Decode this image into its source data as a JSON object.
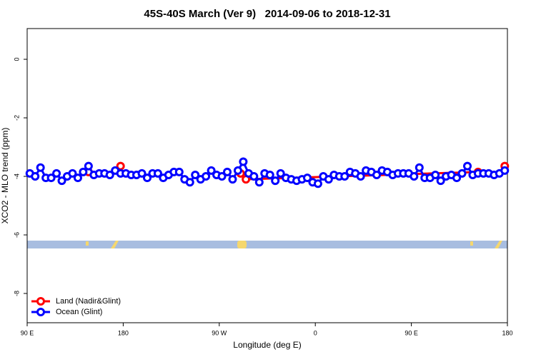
{
  "chart_data": {
    "type": "line",
    "title": "45S-40S March (Ver 9)   2014-09-06 to 2018-12-31",
    "xlabel": "Longitude (deg E)",
    "ylabel": "XCO2 - MLO trend (ppm)",
    "xlim": [
      90,
      540
    ],
    "ylim": [
      -9,
      1.05
    ],
    "xticks": [
      {
        "value": 90,
        "label": "90 E"
      },
      180,
      {
        "value": 270,
        "label": "90 W"
      },
      {
        "value": 360,
        "label": "0"
      },
      {
        "value": 450,
        "label": "90 E"
      },
      {
        "value": 540,
        "label": "180"
      }
    ],
    "yticks": [
      0,
      -2,
      -4,
      -6,
      -8
    ],
    "legend": "bottomleft",
    "series": [
      {
        "name": "Land (Nadir&Glint)",
        "color": "#ff0000",
        "x": [
          147.5,
          152.5,
          177.5,
          182.5,
          290,
          295,
          512.5,
          517.5,
          537.5
        ],
        "values": [
          -3.85,
          null,
          -3.65,
          null,
          -3.9,
          -4.1,
          -3.85,
          null,
          -3.65
        ]
      },
      {
        "name": "Ocean (Glint)",
        "color": "#0000ff",
        "x": [
          92.5,
          97.5,
          102.5,
          107.5,
          112.5,
          117.5,
          122.5,
          127.5,
          132.5,
          137.5,
          142.5,
          147.5,
          152.5,
          157.5,
          162.5,
          167.5,
          172.5,
          177.5,
          182.5,
          187.5,
          192.5,
          197.5,
          202.5,
          207.5,
          212.5,
          217.5,
          222.5,
          227.5,
          232.5,
          237.5,
          242.5,
          247.5,
          252.5,
          257.5,
          262.5,
          267.5,
          272.5,
          277.5,
          282.5,
          287.5,
          292.5,
          297.5,
          302.5,
          307.5,
          312.5,
          317.5,
          322.5,
          327.5,
          332.5,
          337.5,
          342.5,
          347.5,
          352.5,
          357.5,
          362.5,
          367.5,
          372.5,
          377.5,
          382.5,
          387.5,
          392.5,
          397.5,
          402.5,
          407.5,
          412.5,
          417.5,
          422.5,
          427.5,
          432.5,
          437.5,
          442.5,
          447.5,
          452.5,
          457.5,
          462.5,
          467.5,
          472.5,
          477.5,
          482.5,
          487.5,
          492.5,
          497.5,
          502.5,
          507.5,
          512.5,
          517.5,
          522.5,
          527.5,
          532.5,
          537.5
        ],
        "values": [
          -3.9,
          -4.0,
          -3.7,
          -4.05,
          -4.05,
          -3.9,
          -4.15,
          -4.0,
          -3.9,
          -4.05,
          -3.85,
          -3.65,
          -3.95,
          -3.9,
          -3.9,
          -3.95,
          -3.8,
          -3.9,
          -3.9,
          -3.95,
          -3.95,
          -3.9,
          -4.05,
          -3.9,
          -3.9,
          -4.05,
          -3.95,
          -3.85,
          -3.85,
          -4.1,
          -4.2,
          -3.95,
          -4.1,
          -4.0,
          -3.8,
          -3.95,
          -4.0,
          -3.85,
          -4.1,
          -3.8,
          -3.5,
          -3.9,
          -4.0,
          -4.2,
          -3.9,
          -3.95,
          -4.15,
          -3.9,
          -4.05,
          -4.1,
          -4.15,
          -4.1,
          -4.05,
          -4.2,
          -4.25,
          -4.0,
          -4.1,
          -3.95,
          -4.0,
          -4.0,
          -3.85,
          -3.9,
          -4.0,
          -3.8,
          -3.85,
          -3.95,
          -3.8,
          -3.85,
          -3.95,
          -3.9,
          -3.9,
          -3.9,
          -4.0,
          -3.7,
          -4.05,
          -4.05,
          -3.95,
          -4.15,
          -4.0,
          -3.95,
          -4.05,
          -3.9,
          -3.65,
          -3.95,
          -3.9,
          -3.9,
          -3.9,
          -3.95,
          -3.9,
          -3.8
        ]
      }
    ]
  }
}
